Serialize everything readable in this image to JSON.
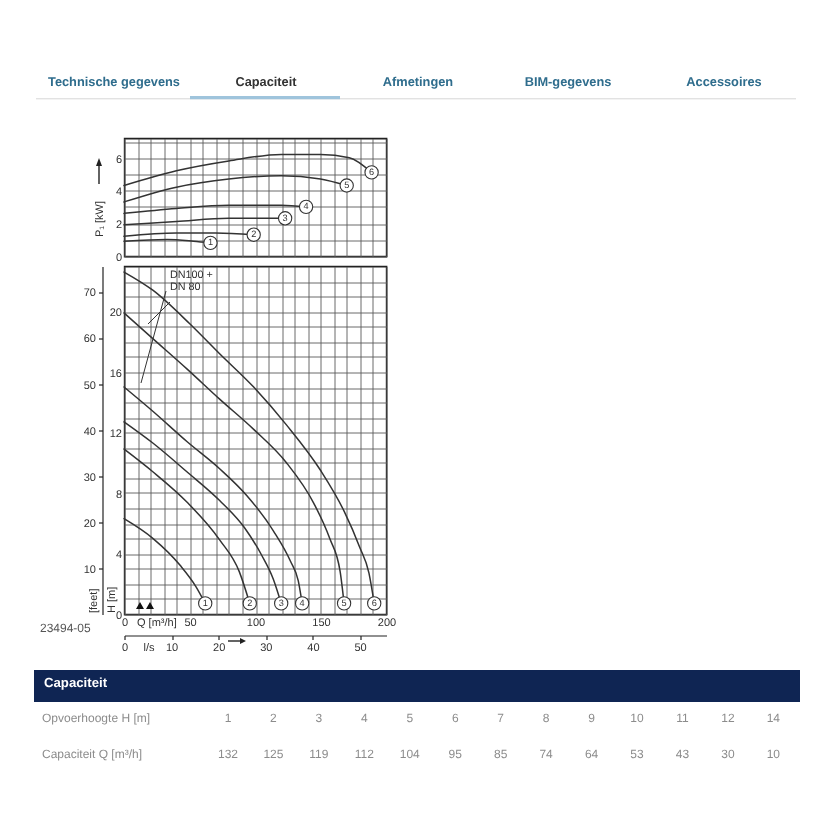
{
  "chart_data": [
    {
      "type": "other",
      "annotations": [
        "Technische gegevens",
        "Capaciteit",
        "Afmetingen",
        "BIM-gegevens",
        "Accessoires"
      ]
    },
    {
      "type": "line",
      "ylabel": "P₁ [kW]",
      "xlim": [
        0,
        200
      ],
      "xticks": [
        0,
        {
          "value": 10,
          "label": null
        },
        {
          "value": 20,
          "label": null
        },
        {
          "value": 30,
          "label": null
        },
        {
          "value": 40,
          "label": null
        },
        50,
        {
          "value": 60,
          "label": null
        },
        {
          "value": 70,
          "label": null
        },
        {
          "value": 80,
          "label": null
        },
        {
          "value": 90,
          "label": null
        },
        100,
        {
          "value": 110,
          "label": null
        },
        {
          "value": 120,
          "label": null
        },
        {
          "value": 130,
          "label": null
        },
        {
          "value": 140,
          "label": null
        },
        150,
        {
          "value": 160,
          "label": null
        },
        {
          "value": 170,
          "label": null
        },
        {
          "value": 180,
          "label": null
        },
        {
          "value": 190,
          "label": null
        },
        200
      ],
      "ylim": [
        0,
        7.2
      ],
      "yticks": [
        0,
        {
          "value": 1,
          "label": null
        },
        2,
        {
          "value": 3,
          "label": null
        },
        4,
        {
          "value": 5,
          "label": null
        },
        6,
        {
          "value": 7,
          "label": null
        }
      ],
      "grid": true,
      "tick_labels": "y",
      "series": [
        {
          "name": "1",
          "color": "#333333",
          "x": [
            0,
            33,
            53,
            66
          ],
          "values": [
            0.9,
            1.0,
            0.9,
            0.8
          ]
        },
        {
          "name": "2",
          "color": "#333333",
          "x": [
            0,
            40,
            70,
            99
          ],
          "values": [
            1.2,
            1.4,
            1.4,
            1.3
          ]
        },
        {
          "name": "3",
          "color": "#333333",
          "x": [
            0,
            40,
            80,
            110,
            123
          ],
          "values": [
            1.9,
            2.1,
            2.3,
            2.3,
            2.3
          ]
        },
        {
          "name": "4",
          "color": "#333333",
          "x": [
            0,
            40,
            80,
            120,
            139
          ],
          "values": [
            2.6,
            2.9,
            3.1,
            3.1,
            3.0
          ]
        },
        {
          "name": "5",
          "color": "#333333",
          "x": [
            0,
            40,
            80,
            120,
            150,
            170
          ],
          "values": [
            3.3,
            4.2,
            4.7,
            4.9,
            4.7,
            4.3
          ]
        },
        {
          "name": "6",
          "color": "#333333",
          "x": [
            0,
            40,
            80,
            120,
            150,
            172,
            189
          ],
          "values": [
            4.3,
            5.2,
            5.8,
            6.2,
            6.2,
            6.0,
            5.1
          ]
        }
      ]
    },
    {
      "type": "line",
      "xlabel": "Q [m³/h]",
      "ylabel": "H [m]",
      "y2label": "[feet]",
      "x2label": "l/s",
      "annotations": [
        "DN100 +\nDN 80",
        "23494-05"
      ],
      "xlim": [
        0,
        200
      ],
      "xticks": [
        0,
        {
          "value": 10,
          "label": null
        },
        {
          "value": 20,
          "label": null
        },
        {
          "value": 30,
          "label": null
        },
        {
          "value": 40,
          "label": null
        },
        50,
        {
          "value": 60,
          "label": null
        },
        {
          "value": 70,
          "label": null
        },
        {
          "value": 80,
          "label": null
        },
        {
          "value": 90,
          "label": null
        },
        100,
        {
          "value": 110,
          "label": null
        },
        {
          "value": 120,
          "label": null
        },
        {
          "value": 130,
          "label": null
        },
        {
          "value": 140,
          "label": null
        },
        150,
        {
          "value": 160,
          "label": null
        },
        {
          "value": 170,
          "label": null
        },
        {
          "value": 180,
          "label": null
        },
        {
          "value": 190,
          "label": null
        },
        200
      ],
      "ylim": [
        0,
        23
      ],
      "yticks": [
        0,
        {
          "value": 1,
          "label": null
        },
        {
          "value": 2,
          "label": null
        },
        {
          "value": 3,
          "label": null
        },
        4,
        {
          "value": 5,
          "label": null
        },
        {
          "value": 6,
          "label": null
        },
        {
          "value": 7,
          "label": null
        },
        8,
        {
          "value": 9,
          "label": null
        },
        {
          "value": 10,
          "label": null
        },
        {
          "value": 11,
          "label": null
        },
        12,
        {
          "value": 13,
          "label": null
        },
        {
          "value": 14,
          "label": null
        },
        {
          "value": 15,
          "label": null
        },
        16,
        {
          "value": 17,
          "label": null
        },
        {
          "value": 18,
          "label": null
        },
        {
          "value": 19,
          "label": null
        },
        20,
        {
          "value": 21,
          "label": null
        },
        {
          "value": 22,
          "label": null
        }
      ],
      "y2lim": [
        0,
        75.5
      ],
      "y2ticks": [
        10,
        20,
        30,
        40,
        50,
        60,
        70
      ],
      "x2lim": [
        0,
        55.6
      ],
      "x2ticks": [
        0,
        10,
        20,
        30,
        40,
        50
      ],
      "grid": true,
      "series": [
        {
          "name": "1",
          "color": "#333333",
          "x": [
            0,
            22,
            43,
            55,
            62
          ],
          "values": [
            6.3,
            5.0,
            3.2,
            1.8,
            0.7
          ]
        },
        {
          "name": "2",
          "color": "#333333",
          "x": [
            0,
            22,
            48,
            73,
            88,
            96
          ],
          "values": [
            10.9,
            9.4,
            7.4,
            4.9,
            2.8,
            0.7
          ]
        },
        {
          "name": "3",
          "color": "#333333",
          "x": [
            0,
            22,
            48,
            73,
            92,
            105,
            114,
            120
          ],
          "values": [
            12.7,
            11.3,
            9.4,
            7.5,
            5.7,
            3.9,
            2.3,
            0.7
          ]
        },
        {
          "name": "4",
          "color": "#333333",
          "x": [
            0,
            22,
            48,
            73,
            94,
            114,
            127,
            133,
            136
          ],
          "values": [
            15.0,
            13.4,
            11.4,
            9.6,
            7.8,
            5.5,
            3.5,
            2.2,
            0.7
          ]
        },
        {
          "name": "5",
          "color": "#333333",
          "x": [
            0,
            22,
            48,
            73,
            99,
            124,
            145,
            157,
            165,
            168
          ],
          "values": [
            19.9,
            18.2,
            16.2,
            14.2,
            12.2,
            10.0,
            7.3,
            5.0,
            2.8,
            0.7
          ]
        },
        {
          "name": "6",
          "color": "#333333",
          "x": [
            0,
            22,
            50,
            73,
            99,
            124,
            150,
            168,
            180,
            187,
            191
          ],
          "values": [
            22.6,
            21.4,
            19.2,
            17.2,
            15.0,
            12.5,
            9.5,
            6.8,
            4.4,
            2.7,
            0.7
          ]
        }
      ]
    },
    {
      "type": "heatmap",
      "title": "Capaciteit",
      "xlabel": "Opvoerhoogte H [m]",
      "categories": [
        "1",
        "2",
        "3",
        "4",
        "5",
        "6",
        "7",
        "8",
        "9",
        "10",
        "11",
        "12",
        "14"
      ],
      "y_categories": [
        "Capaciteit Q [m³/h]"
      ],
      "cells": [
        [
          132,
          125,
          119,
          112,
          104,
          95,
          85,
          74,
          64,
          53,
          43,
          30,
          10
        ]
      ],
      "data_labels": true
    }
  ]
}
